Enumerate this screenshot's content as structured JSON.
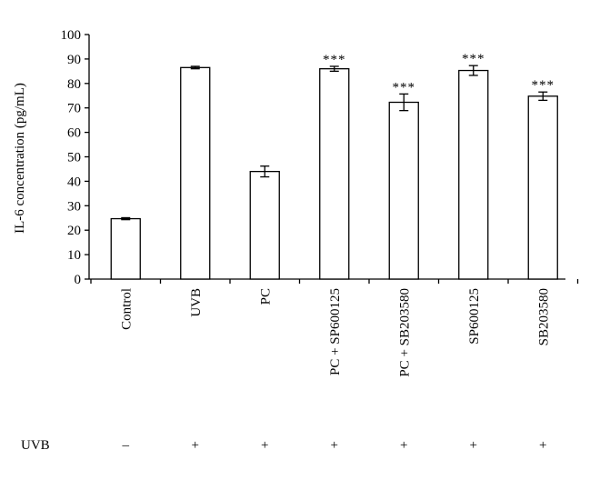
{
  "chart_data": {
    "type": "bar",
    "title": "",
    "xlabel": "",
    "ylabel": "IL-6 concentration (pg/mL)",
    "ylim": [
      0,
      100
    ],
    "yticks": [
      0,
      10,
      20,
      30,
      40,
      50,
      60,
      70,
      80,
      90,
      100
    ],
    "grid": false,
    "categories": [
      "Control",
      "UVB",
      "PC",
      "PC + SP600125",
      "PC + SB203580",
      "SP600125",
      "SB203580"
    ],
    "values": [
      24.7,
      86.5,
      44.0,
      86.0,
      72.3,
      85.3,
      74.8
    ],
    "errors": [
      0.4,
      0.5,
      2.2,
      1.0,
      3.4,
      2.0,
      1.7
    ],
    "significance": [
      "",
      "",
      "",
      "***",
      "***",
      "***",
      "***"
    ],
    "treatment_row": {
      "label": "UVB",
      "values": [
        "–",
        "+",
        "+",
        "+",
        "+",
        "+",
        "+"
      ]
    },
    "colors": {
      "bar_fill": "#ffffff",
      "bar_stroke": "#000000"
    }
  }
}
